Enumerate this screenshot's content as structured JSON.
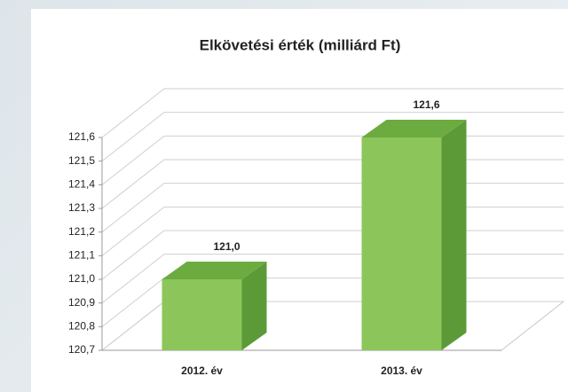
{
  "chart_data": {
    "type": "bar3d",
    "title": "Elkövetési érték (milliárd Ft)",
    "categories": [
      "2012. év",
      "2013. év"
    ],
    "values": [
      121.0,
      121.6
    ],
    "value_labels": [
      "121,0",
      "121,6"
    ],
    "color": "#8cc65a",
    "grid": true,
    "ylim": [
      120.7,
      121.6
    ],
    "yticks": [
      {
        "value": 120.7,
        "label": "120,7"
      },
      {
        "value": 120.8,
        "label": "120,8"
      },
      {
        "value": 120.9,
        "label": "120,9"
      },
      {
        "value": 121.0,
        "label": "121,0"
      },
      {
        "value": 121.1,
        "label": "121,1"
      },
      {
        "value": 121.2,
        "label": "121,2"
      },
      {
        "value": 121.3,
        "label": "121,3"
      },
      {
        "value": 121.4,
        "label": "121,4"
      },
      {
        "value": 121.5,
        "label": "121,5"
      },
      {
        "value": 121.6,
        "label": "121,6"
      }
    ]
  }
}
